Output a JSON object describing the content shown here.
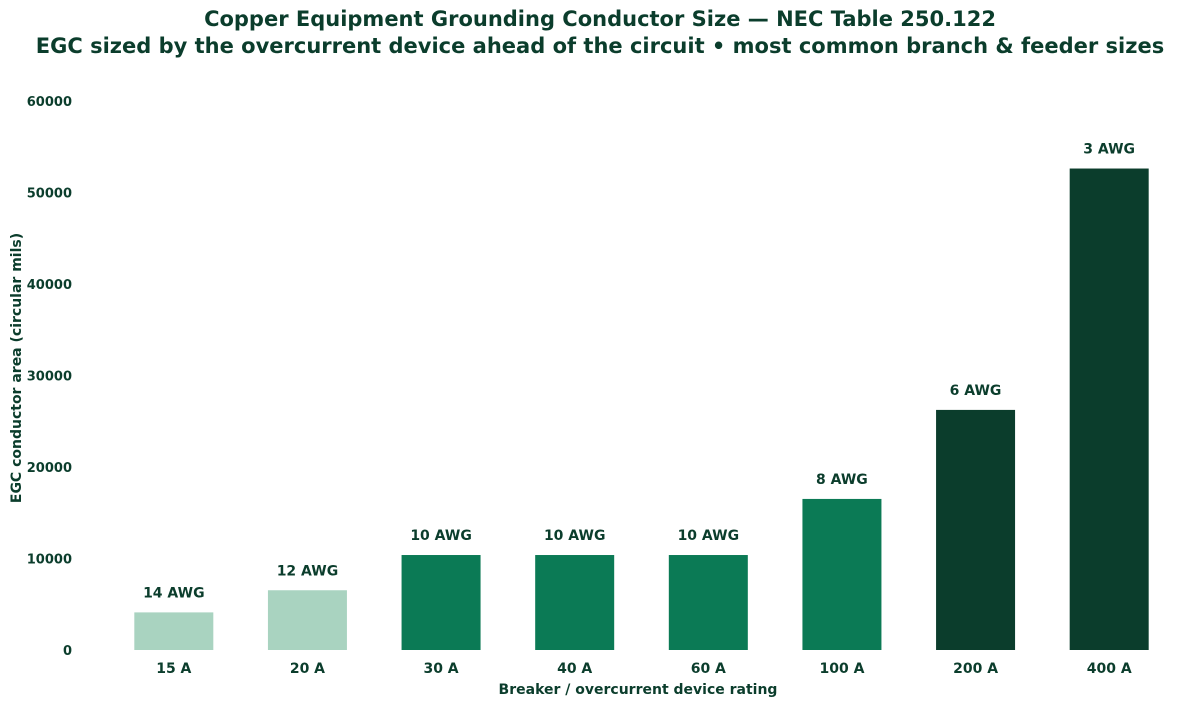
{
  "chart_data": {
    "type": "bar",
    "title": "Copper Equipment Grounding Conductor Size — NEC Table 250.122",
    "subtitle": "EGC sized by the overcurrent device ahead of the circuit  •  most common branch & feeder sizes",
    "xlabel": "Breaker / overcurrent device rating",
    "ylabel": "EGC conductor area (circular mils)",
    "ylim": [
      0,
      60000
    ],
    "yticks": [
      0,
      10000,
      20000,
      30000,
      40000,
      50000,
      60000
    ],
    "grid": false,
    "categories": [
      "15 A",
      "20 A",
      "30 A",
      "40 A",
      "60 A",
      "100 A",
      "200 A",
      "400 A"
    ],
    "values": [
      4110,
      6530,
      10380,
      10380,
      10380,
      16510,
      26240,
      52620
    ],
    "bar_labels": [
      "14 AWG",
      "12 AWG",
      "10 AWG",
      "10 AWG",
      "10 AWG",
      "8 AWG",
      "6 AWG",
      "3 AWG"
    ],
    "bar_colors": [
      "#a9d3c0",
      "#a9d3c0",
      "#0b7a55",
      "#0b7a55",
      "#0b7a55",
      "#0b7a55",
      "#0b3d2c",
      "#0b3d2c"
    ],
    "text_color": "#0b3d2c"
  }
}
